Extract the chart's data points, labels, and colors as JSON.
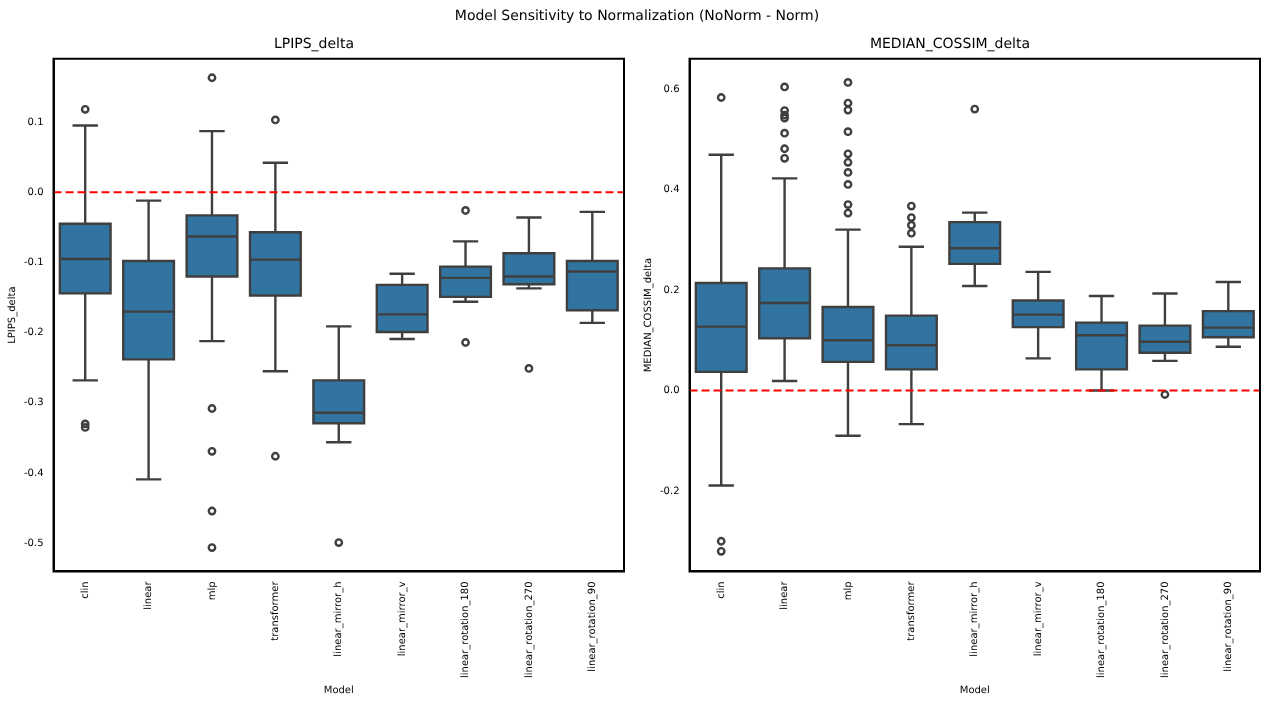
{
  "chart_data": [
    {
      "type": "other",
      "title": "Model Sensitivity to Normalization (NoNorm - Norm)"
    },
    {
      "type": "box",
      "title": "LPIPS_delta",
      "xlabel": "Model",
      "ylabel": "LPIPS_delta",
      "color": "#3274a1",
      "categories": [
        "clin",
        "linear",
        "mlp",
        "transformer",
        "linear_mirror_h",
        "linear_mirror_v",
        "linear_rotation_180",
        "linear_rotation_270",
        "linear_rotation_90"
      ],
      "boxes": [
        {
          "low": -0.268,
          "q1": -0.144,
          "median": -0.095,
          "q3": -0.045,
          "high": 0.095,
          "outliers": [
            0.118,
            -0.33,
            -0.335
          ]
        },
        {
          "low": -0.409,
          "q1": -0.238,
          "median": -0.17,
          "q3": -0.098,
          "high": -0.012
        },
        {
          "low": -0.212,
          "q1": -0.12,
          "median": -0.063,
          "q3": -0.033,
          "high": 0.087,
          "outliers": [
            0.163,
            -0.308,
            -0.369,
            -0.454,
            -0.506
          ]
        },
        {
          "low": -0.255,
          "q1": -0.147,
          "median": -0.096,
          "q3": -0.057,
          "high": 0.042,
          "outliers": [
            0.103,
            -0.376
          ]
        },
        {
          "low": -0.356,
          "q1": -0.329,
          "median": -0.314,
          "q3": -0.268,
          "high": -0.191,
          "outliers": [
            -0.499
          ]
        },
        {
          "low": -0.209,
          "q1": -0.199,
          "median": -0.174,
          "q3": -0.132,
          "high": -0.116
        },
        {
          "low": -0.156,
          "q1": -0.149,
          "median": -0.122,
          "q3": -0.106,
          "high": -0.07,
          "outliers": [
            -0.026,
            -0.214
          ]
        },
        {
          "low": -0.137,
          "q1": -0.131,
          "median": -0.12,
          "q3": -0.087,
          "high": -0.036,
          "outliers": [
            -0.251
          ]
        },
        {
          "low": -0.186,
          "q1": -0.168,
          "median": -0.113,
          "q3": -0.098,
          "high": -0.028
        }
      ],
      "ylim": [
        -0.54,
        0.19
      ],
      "yticks": [
        -0.5,
        -0.4,
        -0.3,
        -0.2,
        -0.1,
        {
          "value": 0,
          "label": "0.0"
        },
        0.1
      ],
      "ref_lines": [
        {
          "axis": "y",
          "value": 0,
          "color": "#ff0000",
          "line_style": "dashed"
        }
      ]
    },
    {
      "type": "box",
      "title": "MEDIAN_COSSIM_delta",
      "xlabel": "Model",
      "ylabel": "MEDIAN_COSSIM_delta",
      "color": "#3274a1",
      "categories": [
        "clin",
        "linear",
        "mlp",
        "transformer",
        "linear_mirror_h",
        "linear_mirror_v",
        "linear_rotation_180",
        "linear_rotation_270",
        "linear_rotation_90"
      ],
      "boxes": [
        {
          "low": -0.189,
          "q1": 0.037,
          "median": 0.127,
          "q3": 0.214,
          "high": 0.469,
          "outliers": [
            0.583,
            -0.3,
            -0.32
          ]
        },
        {
          "low": 0.019,
          "q1": 0.104,
          "median": 0.174,
          "q3": 0.243,
          "high": 0.422,
          "outliers": [
            0.604,
            0.557,
            0.548,
            0.542,
            0.512,
            0.481,
            0.462
          ]
        },
        {
          "low": -0.09,
          "q1": 0.057,
          "median": 0.1,
          "q3": 0.166,
          "high": 0.32,
          "outliers": [
            0.613,
            0.572,
            0.558,
            0.515,
            0.471,
            0.454,
            0.434,
            0.41,
            0.37,
            0.353
          ]
        },
        {
          "low": -0.067,
          "q1": 0.042,
          "median": 0.09,
          "q3": 0.149,
          "high": 0.286,
          "outliers": [
            0.367,
            0.344,
            0.329,
            0.313
          ]
        },
        {
          "low": 0.208,
          "q1": 0.252,
          "median": 0.283,
          "q3": 0.335,
          "high": 0.354,
          "outliers": [
            0.56
          ]
        },
        {
          "low": 0.064,
          "q1": 0.126,
          "median": 0.151,
          "q3": 0.179,
          "high": 0.236
        },
        {
          "low": 0.0,
          "q1": 0.042,
          "median": 0.11,
          "q3": 0.135,
          "high": 0.188
        },
        {
          "low": 0.059,
          "q1": 0.075,
          "median": 0.097,
          "q3": 0.129,
          "high": 0.193,
          "outliers": [
            -0.008
          ]
        },
        {
          "low": 0.087,
          "q1": 0.106,
          "median": 0.125,
          "q3": 0.158,
          "high": 0.216
        }
      ],
      "ylim": [
        -0.36,
        0.66
      ],
      "yticks": [
        -0.2,
        {
          "value": 0,
          "label": "0.0"
        },
        0.2,
        0.4,
        0.6
      ],
      "ref_lines": [
        {
          "axis": "y",
          "value": 0,
          "color": "#ff0000",
          "line_style": "dashed"
        }
      ]
    }
  ]
}
